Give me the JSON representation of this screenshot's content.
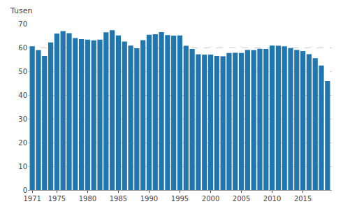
{
  "chart_data": {
    "type": "bar",
    "x": [
      1971,
      1972,
      1973,
      1974,
      1975,
      1976,
      1977,
      1978,
      1979,
      1980,
      1981,
      1982,
      1983,
      1984,
      1985,
      1986,
      1987,
      1988,
      1989,
      1990,
      1991,
      1992,
      1993,
      1994,
      1995,
      1996,
      1997,
      1998,
      1999,
      2000,
      2001,
      2002,
      2003,
      2004,
      2005,
      2006,
      2007,
      2008,
      2009,
      2010,
      2011,
      2012,
      2013,
      2014,
      2015,
      2016,
      2017,
      2018,
      2019
    ],
    "values": [
      60.5,
      58.9,
      56.5,
      62.1,
      65.9,
      66.9,
      66.0,
      64.0,
      63.5,
      63.3,
      63.0,
      63.3,
      66.4,
      67.3,
      65.1,
      62.5,
      60.8,
      59.7,
      63.1,
      65.4,
      65.6,
      66.5,
      65.2,
      65.0,
      65.1,
      60.7,
      59.4,
      57.1,
      57.0,
      57.0,
      56.5,
      56.3,
      57.7,
      57.8,
      57.7,
      59.0,
      58.9,
      59.5,
      59.4,
      60.8,
      60.7,
      60.5,
      59.8,
      59.0,
      58.5,
      57.2,
      55.5,
      52.4,
      45.9
    ],
    "color": "#2176ae",
    "ylabel": "Tusen",
    "xlim": [
      1970.3,
      2019.7
    ],
    "xticks": [
      1971,
      1975,
      1980,
      1985,
      1990,
      1995,
      2000,
      2005,
      2010,
      2015
    ],
    "ylim": [
      0,
      70
    ],
    "yticks": [
      0,
      10,
      20,
      30,
      40,
      50,
      60,
      70
    ],
    "grid": true
  }
}
